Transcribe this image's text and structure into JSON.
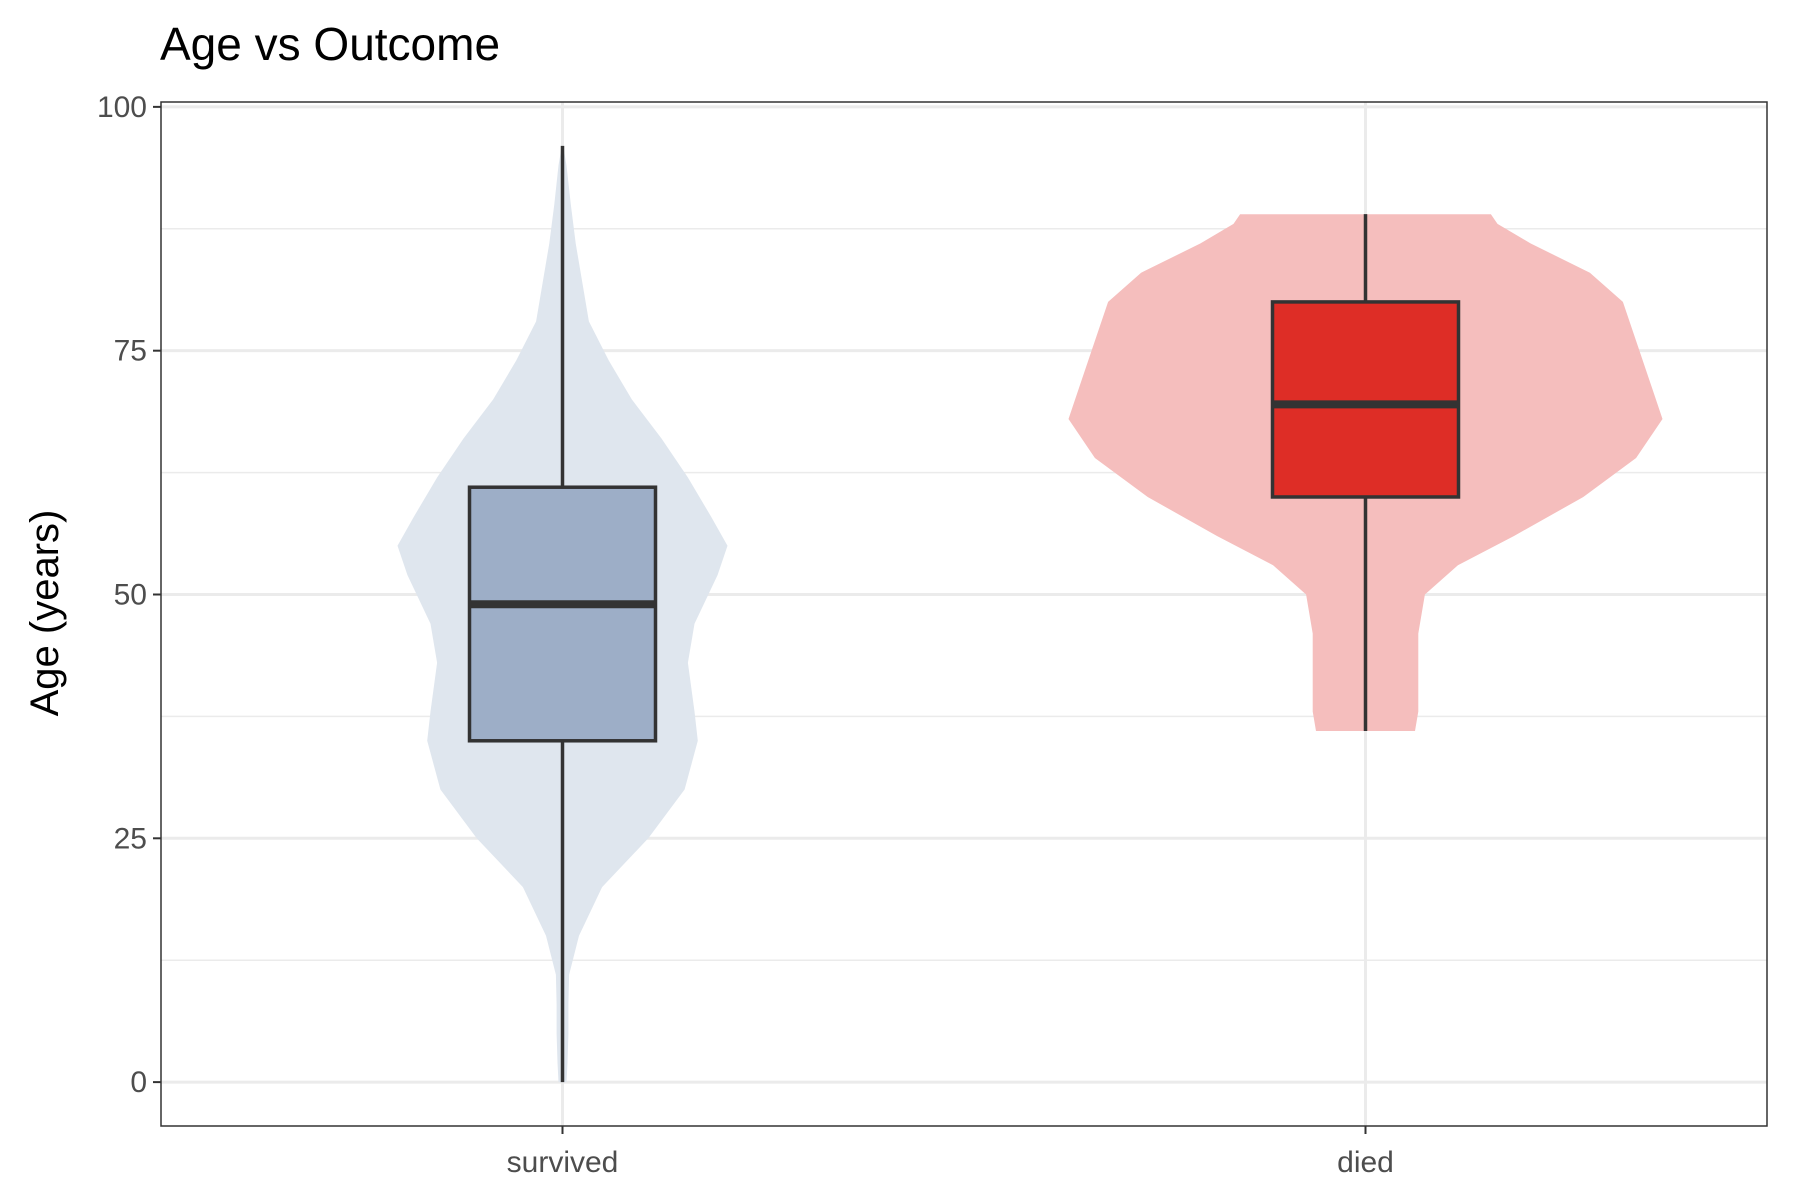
{
  "chart_data": {
    "type": "violin",
    "title": "Age vs Outcome",
    "xlabel": "",
    "ylabel": "Age (years)",
    "ylim": [
      -4.5,
      100.5
    ],
    "y_ticks": [
      0,
      25,
      50,
      75,
      100
    ],
    "grid": true,
    "categories": [
      "survived",
      "died"
    ],
    "groups": [
      {
        "category": "survived",
        "violin_color": "#dfe6ee",
        "box_color": "#9daec7",
        "box": {
          "whisker_low": 0,
          "q1": 35,
          "median": 49,
          "q3": 61,
          "whisker_high": 96
        },
        "density": [
          [
            0,
            0.012
          ],
          [
            2,
            0.015
          ],
          [
            5,
            0.018
          ],
          [
            8,
            0.018
          ],
          [
            11,
            0.02
          ],
          [
            15,
            0.05
          ],
          [
            20,
            0.12
          ],
          [
            25,
            0.26
          ],
          [
            30,
            0.37
          ],
          [
            35,
            0.41
          ],
          [
            38,
            0.4
          ],
          [
            43,
            0.38
          ],
          [
            47,
            0.4
          ],
          [
            52,
            0.47
          ],
          [
            55,
            0.5
          ],
          [
            58,
            0.45
          ],
          [
            62,
            0.38
          ],
          [
            66,
            0.3
          ],
          [
            70,
            0.21
          ],
          [
            74,
            0.14
          ],
          [
            78,
            0.08
          ],
          [
            82,
            0.06
          ],
          [
            86,
            0.04
          ],
          [
            90,
            0.025
          ],
          [
            94,
            0.012
          ],
          [
            96,
            0.002
          ]
        ]
      },
      {
        "category": "died",
        "violin_color": "#f5bebd",
        "box_color": "#de2d26",
        "box": {
          "whisker_low": 36,
          "q1": 60,
          "median": 69.5,
          "q3": 80,
          "whisker_high": 89
        },
        "density": [
          [
            36,
            0.15
          ],
          [
            38,
            0.16
          ],
          [
            42,
            0.16
          ],
          [
            46,
            0.16
          ],
          [
            50,
            0.18
          ],
          [
            53,
            0.28
          ],
          [
            56,
            0.45
          ],
          [
            60,
            0.66
          ],
          [
            64,
            0.82
          ],
          [
            68,
            0.9
          ],
          [
            72,
            0.86
          ],
          [
            76,
            0.82
          ],
          [
            80,
            0.78
          ],
          [
            83,
            0.68
          ],
          [
            86,
            0.5
          ],
          [
            88,
            0.4
          ],
          [
            89,
            0.38
          ]
        ]
      }
    ]
  }
}
